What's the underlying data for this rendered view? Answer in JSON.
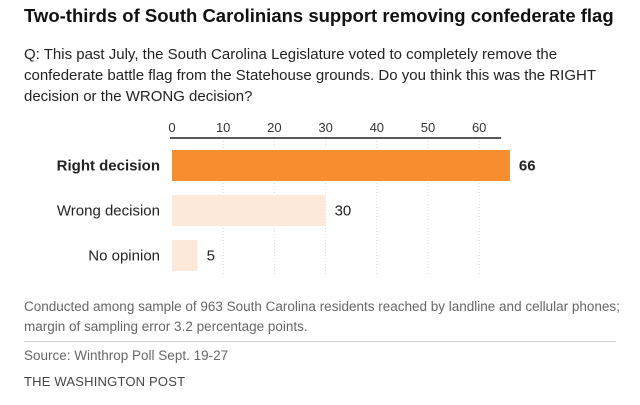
{
  "title": "Two-thirds of South Carolinians support removing confederate flag",
  "question": "Q: This past July, the South Carolina Legislature voted to completely remove the confederate battle flag from the Statehouse grounds. Do you think this was the RIGHT decision or the WRONG decision?",
  "chart_data": {
    "type": "bar",
    "orientation": "horizontal",
    "categories": [
      "Right decision",
      "Wrong decision",
      "No opinion"
    ],
    "values": [
      66,
      30,
      5
    ],
    "value_labels": [
      "66",
      "30",
      "5"
    ],
    "xticks": [
      "0",
      "10",
      "20",
      "30",
      "40",
      "50",
      "60"
    ],
    "xlim": [
      0,
      60
    ],
    "highlight_index": 0,
    "colors": {
      "highlight": "#f68d2e",
      "muted": "#fde9da",
      "axis": "#222222",
      "grid": "#d9d9d9"
    }
  },
  "note": "Conducted among sample of 963 South Carolina residents reached by landline and cellular phones; margin of sampling error 3.2 percentage points.",
  "source": "Source: Winthrop Poll Sept. 19-27",
  "credit": "THE WASHINGTON POST"
}
